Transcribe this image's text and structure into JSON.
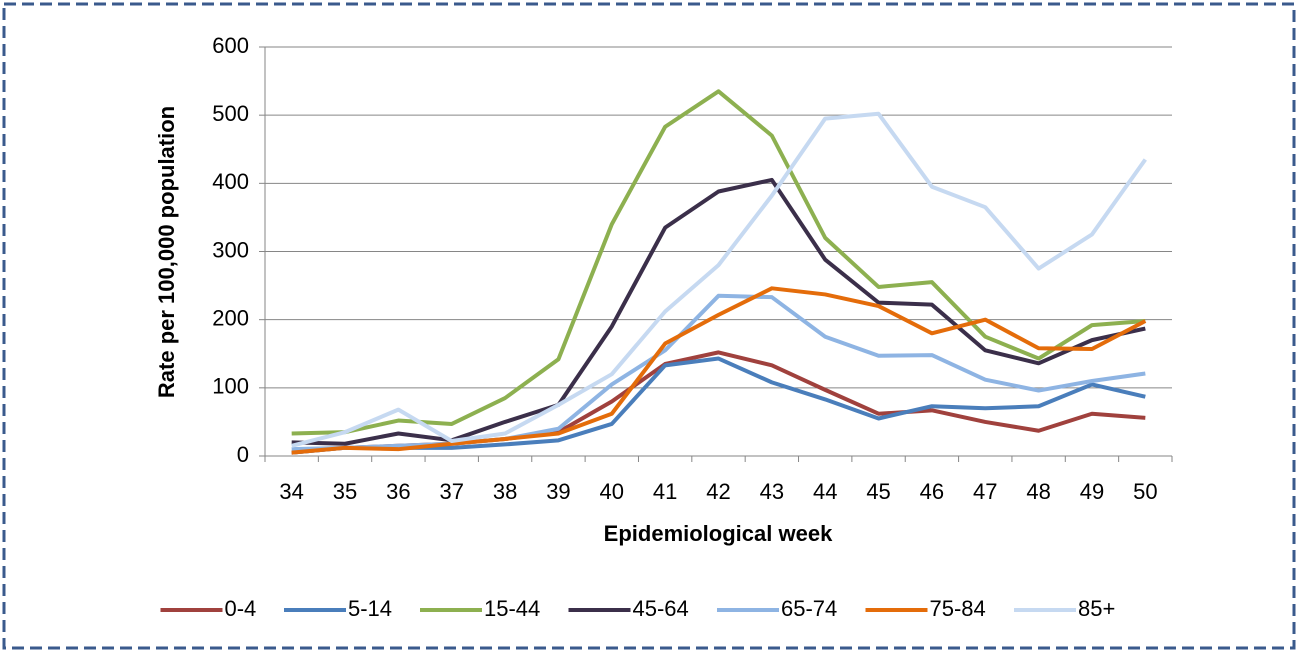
{
  "chart_data": {
    "type": "line",
    "y_label": "Rate per 100,000 population",
    "x_label": "Epidemiological week",
    "categories": [
      "34",
      "35",
      "36",
      "37",
      "38",
      "39",
      "40",
      "41",
      "42",
      "43",
      "44",
      "45",
      "46",
      "47",
      "48",
      "49",
      "50"
    ],
    "ylim": [
      0,
      600
    ],
    "yticks": [
      0,
      100,
      200,
      300,
      400,
      500,
      600
    ],
    "grid": true,
    "legend": "bottom",
    "series": [
      {
        "name": "0-4",
        "color": "#a0413d",
        "values": [
          5,
          12,
          15,
          18,
          25,
          35,
          80,
          135,
          152,
          133,
          97,
          62,
          67,
          50,
          37,
          62,
          56
        ]
      },
      {
        "name": "5-14",
        "color": "#4a7ebb",
        "values": [
          5,
          12,
          12,
          12,
          17,
          23,
          47,
          133,
          143,
          108,
          83,
          55,
          73,
          70,
          73,
          105,
          87
        ]
      },
      {
        "name": "15-44",
        "color": "#8db050",
        "values": [
          33,
          35,
          52,
          47,
          85,
          142,
          340,
          483,
          535,
          470,
          320,
          248,
          255,
          175,
          143,
          192,
          198
        ]
      },
      {
        "name": "45-64",
        "color": "#3b2f4a",
        "values": [
          20,
          18,
          33,
          23,
          50,
          75,
          190,
          335,
          388,
          405,
          288,
          225,
          222,
          155,
          136,
          170,
          187
        ]
      },
      {
        "name": "65-74",
        "color": "#8eb4e3",
        "values": [
          10,
          12,
          15,
          18,
          25,
          40,
          105,
          155,
          235,
          233,
          175,
          147,
          148,
          112,
          96,
          110,
          121
        ]
      },
      {
        "name": "75-84",
        "color": "#e46c0a",
        "values": [
          5,
          12,
          10,
          18,
          25,
          33,
          62,
          165,
          207,
          246,
          237,
          220,
          180,
          200,
          158,
          157,
          198
        ]
      },
      {
        "name": "85+",
        "color": "#c6d9f1",
        "values": [
          15,
          35,
          68,
          22,
          33,
          75,
          120,
          212,
          280,
          382,
          495,
          502,
          395,
          365,
          275,
          325,
          435
        ]
      }
    ]
  }
}
